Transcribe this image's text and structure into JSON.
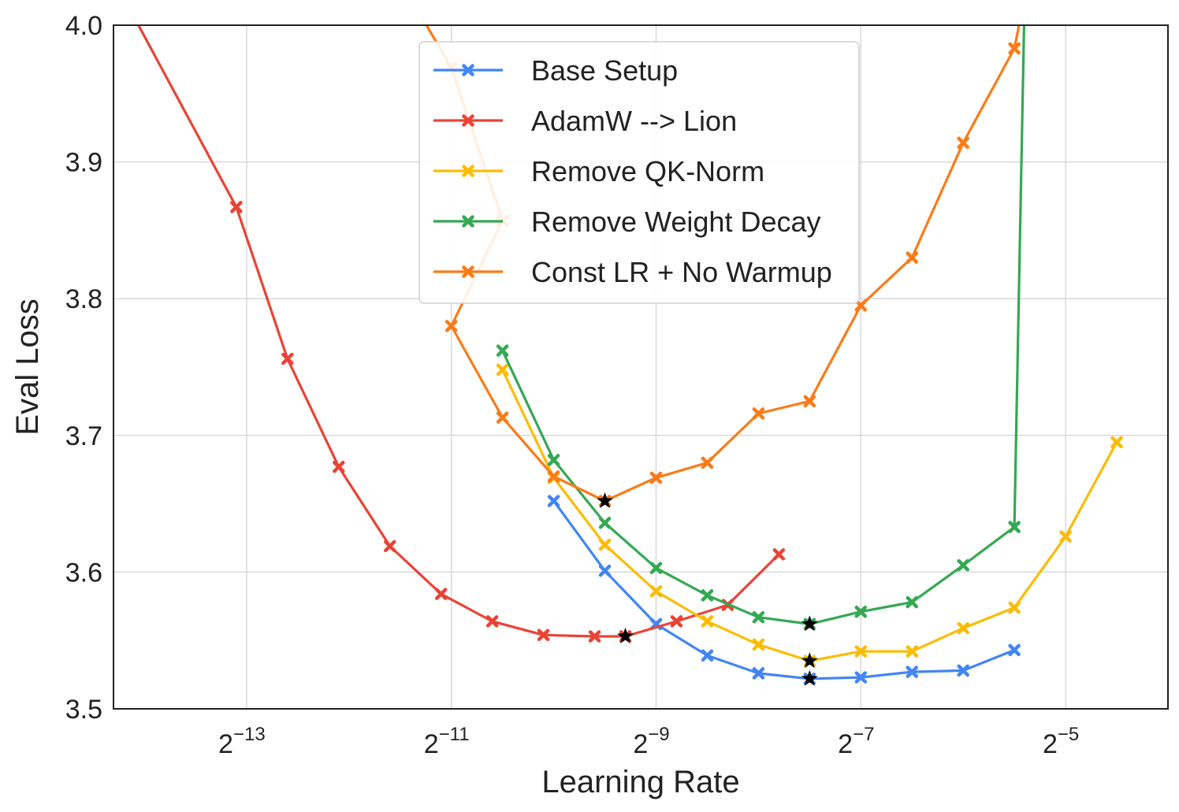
{
  "chart_data": {
    "type": "line",
    "xlabel": "Learning Rate",
    "ylabel": "Eval Loss",
    "x_scale": "log2",
    "xlim_log2": [
      -14.3,
      -4.0
    ],
    "ylim": [
      3.5,
      4.0
    ],
    "x_ticks": [
      {
        "base": "2",
        "exp": "−13",
        "log2": -13
      },
      {
        "base": "2",
        "exp": "−11",
        "log2": -11
      },
      {
        "base": "2",
        "exp": "−9",
        "log2": -9
      },
      {
        "base": "2",
        "exp": "−7",
        "log2": -7
      },
      {
        "base": "2",
        "exp": "−5",
        "log2": -5
      }
    ],
    "y_ticks": [
      "3.5",
      "3.6",
      "3.7",
      "3.8",
      "3.9",
      "4.0"
    ],
    "grid": true,
    "legend_position": "top-center",
    "series": [
      {
        "name": "Base Setup",
        "color": "#4285f4",
        "points": [
          [
            -10.0,
            3.652
          ],
          [
            -9.5,
            3.601
          ],
          [
            -9.0,
            3.562
          ],
          [
            -8.5,
            3.539
          ],
          [
            -8.0,
            3.526
          ],
          [
            -7.5,
            3.522
          ],
          [
            -7.0,
            3.523
          ],
          [
            -6.5,
            3.527
          ],
          [
            -6.0,
            3.528
          ],
          [
            -5.5,
            3.543
          ]
        ]
      },
      {
        "name": "AdamW --> Lion",
        "color": "#ea4335",
        "points": [
          [
            -14.2,
            4.02
          ],
          [
            -13.1,
            3.867
          ],
          [
            -12.6,
            3.756
          ],
          [
            -12.1,
            3.677
          ],
          [
            -11.6,
            3.619
          ],
          [
            -11.1,
            3.584
          ],
          [
            -10.6,
            3.564
          ],
          [
            -10.1,
            3.554
          ],
          [
            -9.6,
            3.553
          ],
          [
            -9.3,
            3.553
          ],
          [
            -8.8,
            3.564
          ],
          [
            -8.3,
            3.576
          ],
          [
            -7.8,
            3.613
          ]
        ]
      },
      {
        "name": "Remove QK-Norm",
        "color": "#fbbc04",
        "points": [
          [
            -10.5,
            3.748
          ],
          [
            -10.0,
            3.669
          ],
          [
            -9.5,
            3.62
          ],
          [
            -9.0,
            3.586
          ],
          [
            -8.5,
            3.564
          ],
          [
            -8.0,
            3.547
          ],
          [
            -7.5,
            3.535
          ],
          [
            -7.0,
            3.542
          ],
          [
            -6.5,
            3.542
          ],
          [
            -6.0,
            3.559
          ],
          [
            -5.5,
            3.574
          ],
          [
            -5.0,
            3.626
          ],
          [
            -4.5,
            3.695
          ]
        ]
      },
      {
        "name": "Remove Weight Decay",
        "color": "#34a853",
        "points": [
          [
            -10.5,
            3.762
          ],
          [
            -10.0,
            3.682
          ],
          [
            -9.5,
            3.636
          ],
          [
            -9.0,
            3.603
          ],
          [
            -8.5,
            3.583
          ],
          [
            -8.0,
            3.567
          ],
          [
            -7.5,
            3.562
          ],
          [
            -7.0,
            3.571
          ],
          [
            -6.5,
            3.578
          ],
          [
            -6.0,
            3.605
          ],
          [
            -5.5,
            3.633
          ],
          [
            -5.4,
            4.02
          ]
        ]
      },
      {
        "name": "Const LR + No Warmup",
        "color": "#fa7b17",
        "points": [
          [
            -11.4,
            4.02
          ],
          [
            -11.0,
            3.969
          ],
          [
            -10.5,
            3.857
          ],
          [
            -11.0,
            3.78
          ],
          [
            -10.5,
            3.713
          ],
          [
            -10.0,
            3.67
          ],
          [
            -9.5,
            3.652
          ],
          [
            -9.0,
            3.669
          ],
          [
            -8.5,
            3.68
          ],
          [
            -8.0,
            3.716
          ],
          [
            -7.5,
            3.725
          ],
          [
            -7.0,
            3.795
          ],
          [
            -6.5,
            3.83
          ],
          [
            -6.0,
            3.914
          ],
          [
            -5.5,
            3.983
          ],
          [
            -5.4,
            4.02
          ]
        ]
      }
    ],
    "best_markers": [
      [
        -9.5,
        3.652
      ],
      [
        -9.3,
        3.553
      ],
      [
        -7.5,
        3.562
      ],
      [
        -7.5,
        3.535
      ],
      [
        -7.5,
        3.522
      ]
    ]
  }
}
